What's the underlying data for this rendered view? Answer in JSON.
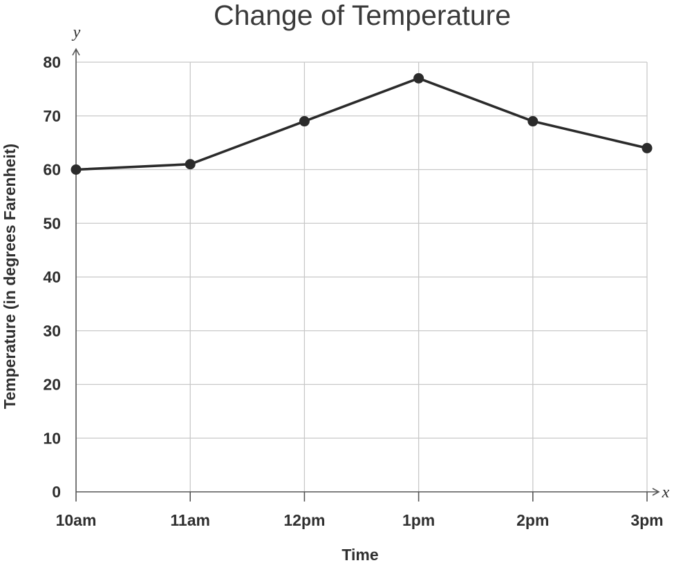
{
  "chart_data": {
    "type": "line",
    "title": "Change of Temperature",
    "xlabel": "Time",
    "ylabel": "Temperature (in degrees Farenheit)",
    "x_axis_letter": "x",
    "y_axis_letter": "y",
    "categories": [
      "10am",
      "11am",
      "12pm",
      "1pm",
      "2pm",
      "3pm"
    ],
    "values": [
      60,
      61,
      69,
      77,
      69,
      64
    ],
    "ylim": [
      0,
      80
    ],
    "yticks": [
      "0",
      "10",
      "20",
      "30",
      "40",
      "50",
      "60",
      "70",
      "80"
    ],
    "grid": true,
    "colors": {
      "line": "#2b2b2b",
      "grid": "#c8c8c8",
      "text": "#2f2f2f"
    }
  }
}
